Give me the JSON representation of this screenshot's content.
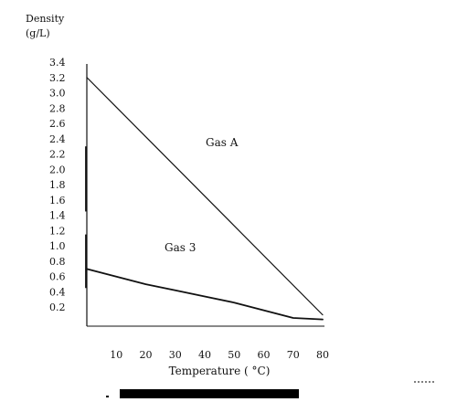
{
  "chart_data": {
    "type": "line",
    "xlabel": "Temperature ( °C)",
    "ylabel_lines": [
      "Density",
      "(g/L)"
    ],
    "x_ticks": [
      10,
      20,
      30,
      40,
      50,
      60,
      70,
      80
    ],
    "y_ticks": [
      "0.2",
      "0.4",
      "0.6",
      "0.8",
      "1.0",
      "1.2",
      "1.4",
      "1.6",
      "1.8",
      "2.0",
      "2.2",
      "2.4",
      "2.6",
      "2.8",
      "3.0",
      "3.2",
      "3.4"
    ],
    "xlim": [
      0,
      80
    ],
    "ylim": [
      0,
      3.4
    ],
    "grid": false,
    "series": [
      {
        "name": "Gas A",
        "x": [
          0,
          80
        ],
        "y": [
          3.2,
          0.1
        ]
      },
      {
        "name": "Gas 3",
        "x": [
          0,
          10,
          20,
          30,
          40,
          50,
          60,
          70,
          80
        ],
        "y": [
          0.7,
          0.6,
          0.5,
          0.42,
          0.34,
          0.26,
          0.16,
          0.06,
          0.04
        ]
      }
    ]
  }
}
